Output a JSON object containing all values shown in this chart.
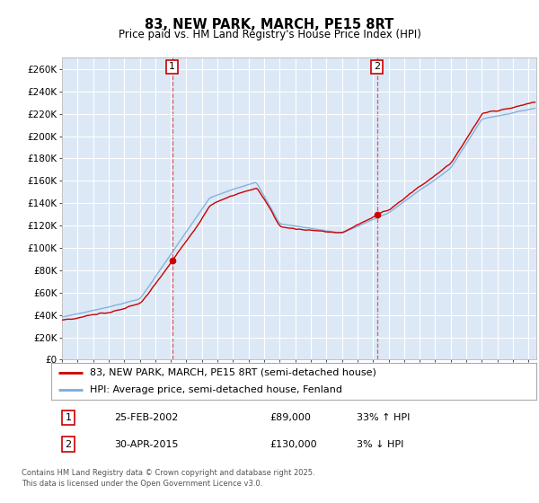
{
  "title": "83, NEW PARK, MARCH, PE15 8RT",
  "subtitle": "Price paid vs. HM Land Registry's House Price Index (HPI)",
  "red_label": "83, NEW PARK, MARCH, PE15 8RT (semi-detached house)",
  "blue_label": "HPI: Average price, semi-detached house, Fenland",
  "red_color": "#cc0000",
  "blue_color": "#7aaddb",
  "marker_color": "#cc0000",
  "vline_color": "#dd4444",
  "background_color": "#dce8f5",
  "fig_bg": "#ffffff",
  "title_fontsize": 10.5,
  "subtitle_fontsize": 8.5,
  "ylim": [
    0,
    270000
  ],
  "yticks": [
    0,
    20000,
    40000,
    60000,
    80000,
    100000,
    120000,
    140000,
    160000,
    180000,
    200000,
    220000,
    240000,
    260000
  ],
  "ytick_labels": [
    "£0",
    "£20K",
    "£40K",
    "£60K",
    "£80K",
    "£100K",
    "£120K",
    "£140K",
    "£160K",
    "£180K",
    "£200K",
    "£220K",
    "£240K",
    "£260K"
  ],
  "xlim_start": 1995,
  "xlim_end": 2025.5,
  "sale1_year": 2002.122,
  "sale1_price": 89000,
  "sale2_year": 2015.333,
  "sale2_price": 130000,
  "footer": "Contains HM Land Registry data © Crown copyright and database right 2025.\nThis data is licensed under the Open Government Licence v3.0."
}
